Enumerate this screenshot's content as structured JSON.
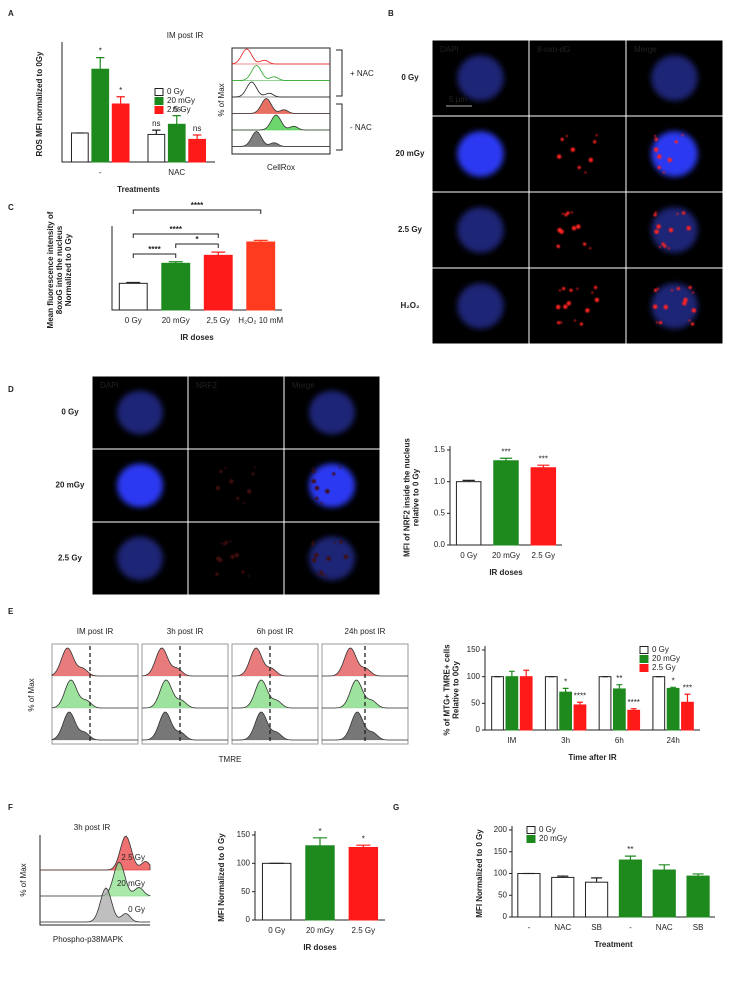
{
  "panel_labels": [
    "A",
    "B",
    "C",
    "D",
    "E",
    "F",
    "G"
  ],
  "chart_data": [
    {
      "type": "bar",
      "title": "IM post IR",
      "ylabel": "ROS MFI normalized to 0Gy",
      "xlabel": "Treatments",
      "categories": [
        "-",
        "NAC"
      ],
      "ylim": [
        0,
        4
      ],
      "legend": "center right",
      "series": [
        {
          "name": "0 Gy",
          "color": "#ffffff",
          "values": [
            1.0,
            0.95
          ],
          "errors": [
            0,
            0.15
          ],
          "significance": [
            null,
            "ns"
          ]
        },
        {
          "name": "20 mGy",
          "color": "#1e8a1e",
          "values": [
            3.2,
            1.3
          ],
          "errors": [
            0.4,
            0.3
          ],
          "significance": [
            "*",
            "ns"
          ]
        },
        {
          "name": "2.5 Gy",
          "color": "#ff1a1a",
          "values": [
            2.0,
            0.78
          ],
          "errors": [
            0.25,
            0.15
          ],
          "significance": [
            "*",
            "ns"
          ]
        }
      ]
    },
    {
      "type": "bar",
      "ylabel": [
        "Mean fluorescence intensity of",
        "8oxoG into the nucleus",
        "Normalized to 0 Gy"
      ],
      "xlabel": "IR doses",
      "categories": [
        "0 Gy",
        "20 mGy",
        "2,5 Gy",
        "H₂O₂ 10 mM"
      ],
      "values": [
        1.0,
        1.75,
        2.05,
        2.55
      ],
      "errors": [
        0.03,
        0.06,
        0.12,
        0.06
      ],
      "colors": [
        "#ffffff",
        "#1e8a1e",
        "#ff1a1a",
        "#ff3b1f"
      ],
      "ylim": [
        0,
        3
      ],
      "comparisons": [
        {
          "between": [
            0,
            1
          ],
          "label": "****"
        },
        {
          "between": [
            1,
            2
          ],
          "label": "*"
        },
        {
          "between": [
            0,
            2
          ],
          "label": "****"
        },
        {
          "between": [
            0,
            3
          ],
          "label": "****"
        }
      ]
    },
    {
      "type": "bar",
      "ylabel": [
        "MFI of NRF2 inside the nucleus",
        "relative to 0 Gy"
      ],
      "xlabel": "IR doses",
      "categories": [
        "0 Gy",
        "20 mGy",
        "2.5 Gy"
      ],
      "values": [
        1.0,
        1.33,
        1.22
      ],
      "errors": [
        0.02,
        0.04,
        0.04
      ],
      "significance": [
        null,
        "***",
        "***"
      ],
      "colors": [
        "#ffffff",
        "#1e8a1e",
        "#ff1a1a"
      ],
      "ylim": [
        0,
        1.5
      ],
      "yticks": [
        {
          "value": 0,
          "label": "0.0"
        },
        0.5,
        {
          "value": 1,
          "label": "1.0"
        },
        1.5
      ]
    },
    {
      "type": "bar",
      "ylabel": [
        "% of MTG+ TMRE+ cells",
        "Relative to 0Gy"
      ],
      "xlabel": "Time after IR",
      "categories": [
        "IM",
        "3h",
        "6h",
        "24h"
      ],
      "ylim": [
        0,
        150
      ],
      "yticks": [
        0,
        50,
        100,
        150
      ],
      "legend": "upper right",
      "series": [
        {
          "name": "0 Gy",
          "color": "#ffffff",
          "values": [
            100,
            100,
            100,
            100
          ],
          "errors": [
            0,
            0,
            0,
            0
          ]
        },
        {
          "name": "20 mGy",
          "color": "#1e8a1e",
          "values": [
            100,
            71,
            77,
            78
          ],
          "errors": [
            10,
            7,
            8,
            2
          ],
          "significance": [
            null,
            "*",
            "**",
            "*"
          ]
        },
        {
          "name": "2.5 Gy",
          "color": "#ff1a1a",
          "values": [
            100,
            47,
            37,
            52
          ],
          "errors": [
            12,
            5,
            3,
            15
          ],
          "significance": [
            null,
            "****",
            "****",
            "***"
          ]
        }
      ]
    },
    {
      "type": "bar",
      "ylabel": "MFI Normalized to 0 Gy",
      "xlabel": "IR doses",
      "categories": [
        "0 Gy",
        "20 mGy",
        "2.5 Gy"
      ],
      "values": [
        100,
        131,
        128
      ],
      "errors": [
        0,
        14,
        4
      ],
      "significance": [
        null,
        "*",
        "*"
      ],
      "colors": [
        "#ffffff",
        "#1e8a1e",
        "#ff1a1a"
      ],
      "ylim": [
        0,
        150
      ],
      "yticks": [
        0,
        50,
        100,
        150
      ]
    },
    {
      "type": "bar",
      "ylabel": "MFI Normalized to 0 Gy",
      "xlabel": "Treatment",
      "categories": [
        "-",
        "NAC",
        "SB",
        "-",
        "NAC",
        "SB"
      ],
      "ylim": [
        0,
        200
      ],
      "yticks": [
        0,
        50,
        100,
        150,
        200
      ],
      "legend": "upper left",
      "series": [
        {
          "name": "0 Gy",
          "color": "#ffffff",
          "values": [
            100,
            91,
            80,
            null,
            null,
            null
          ],
          "errors": [
            0,
            3,
            10,
            null,
            null,
            null
          ]
        },
        {
          "name": "20 mGy",
          "color": "#1e8a1e",
          "values": [
            null,
            null,
            null,
            131,
            108,
            94
          ],
          "errors": [
            null,
            null,
            null,
            9,
            12,
            5
          ],
          "significance": [
            null,
            null,
            null,
            "**",
            null,
            null
          ]
        }
      ]
    }
  ],
  "flow": {
    "A": {
      "ylabel": "% of Max",
      "xlabel": "CellRox",
      "groups": [
        "+ NAC",
        "- NAC"
      ]
    },
    "E": {
      "titles": [
        "IM post IR",
        "3h post IR",
        "6h post IR",
        "24h post IR"
      ],
      "ylabel": "% of Max",
      "xlabel": "TMRE"
    },
    "F": {
      "title": "3h post IR",
      "ylabel": "% of Max",
      "xlabel": "Phospho-p38MAPK",
      "samples": [
        "2.5 Gy",
        "20 mGy",
        "0 Gy"
      ]
    }
  },
  "microscopy": {
    "B": {
      "columns": [
        "DAPI",
        "8-oxo-dG",
        "Merge"
      ],
      "rows": [
        "0 Gy",
        "20 mGy",
        "2.5 Gy",
        "H₂O₂"
      ],
      "scale_bar": "5 µm"
    },
    "D": {
      "columns": [
        "DAPI",
        "NRF2",
        "Merge"
      ],
      "rows": [
        "0 Gy",
        "20 mGy",
        "2.5 Gy"
      ]
    }
  }
}
